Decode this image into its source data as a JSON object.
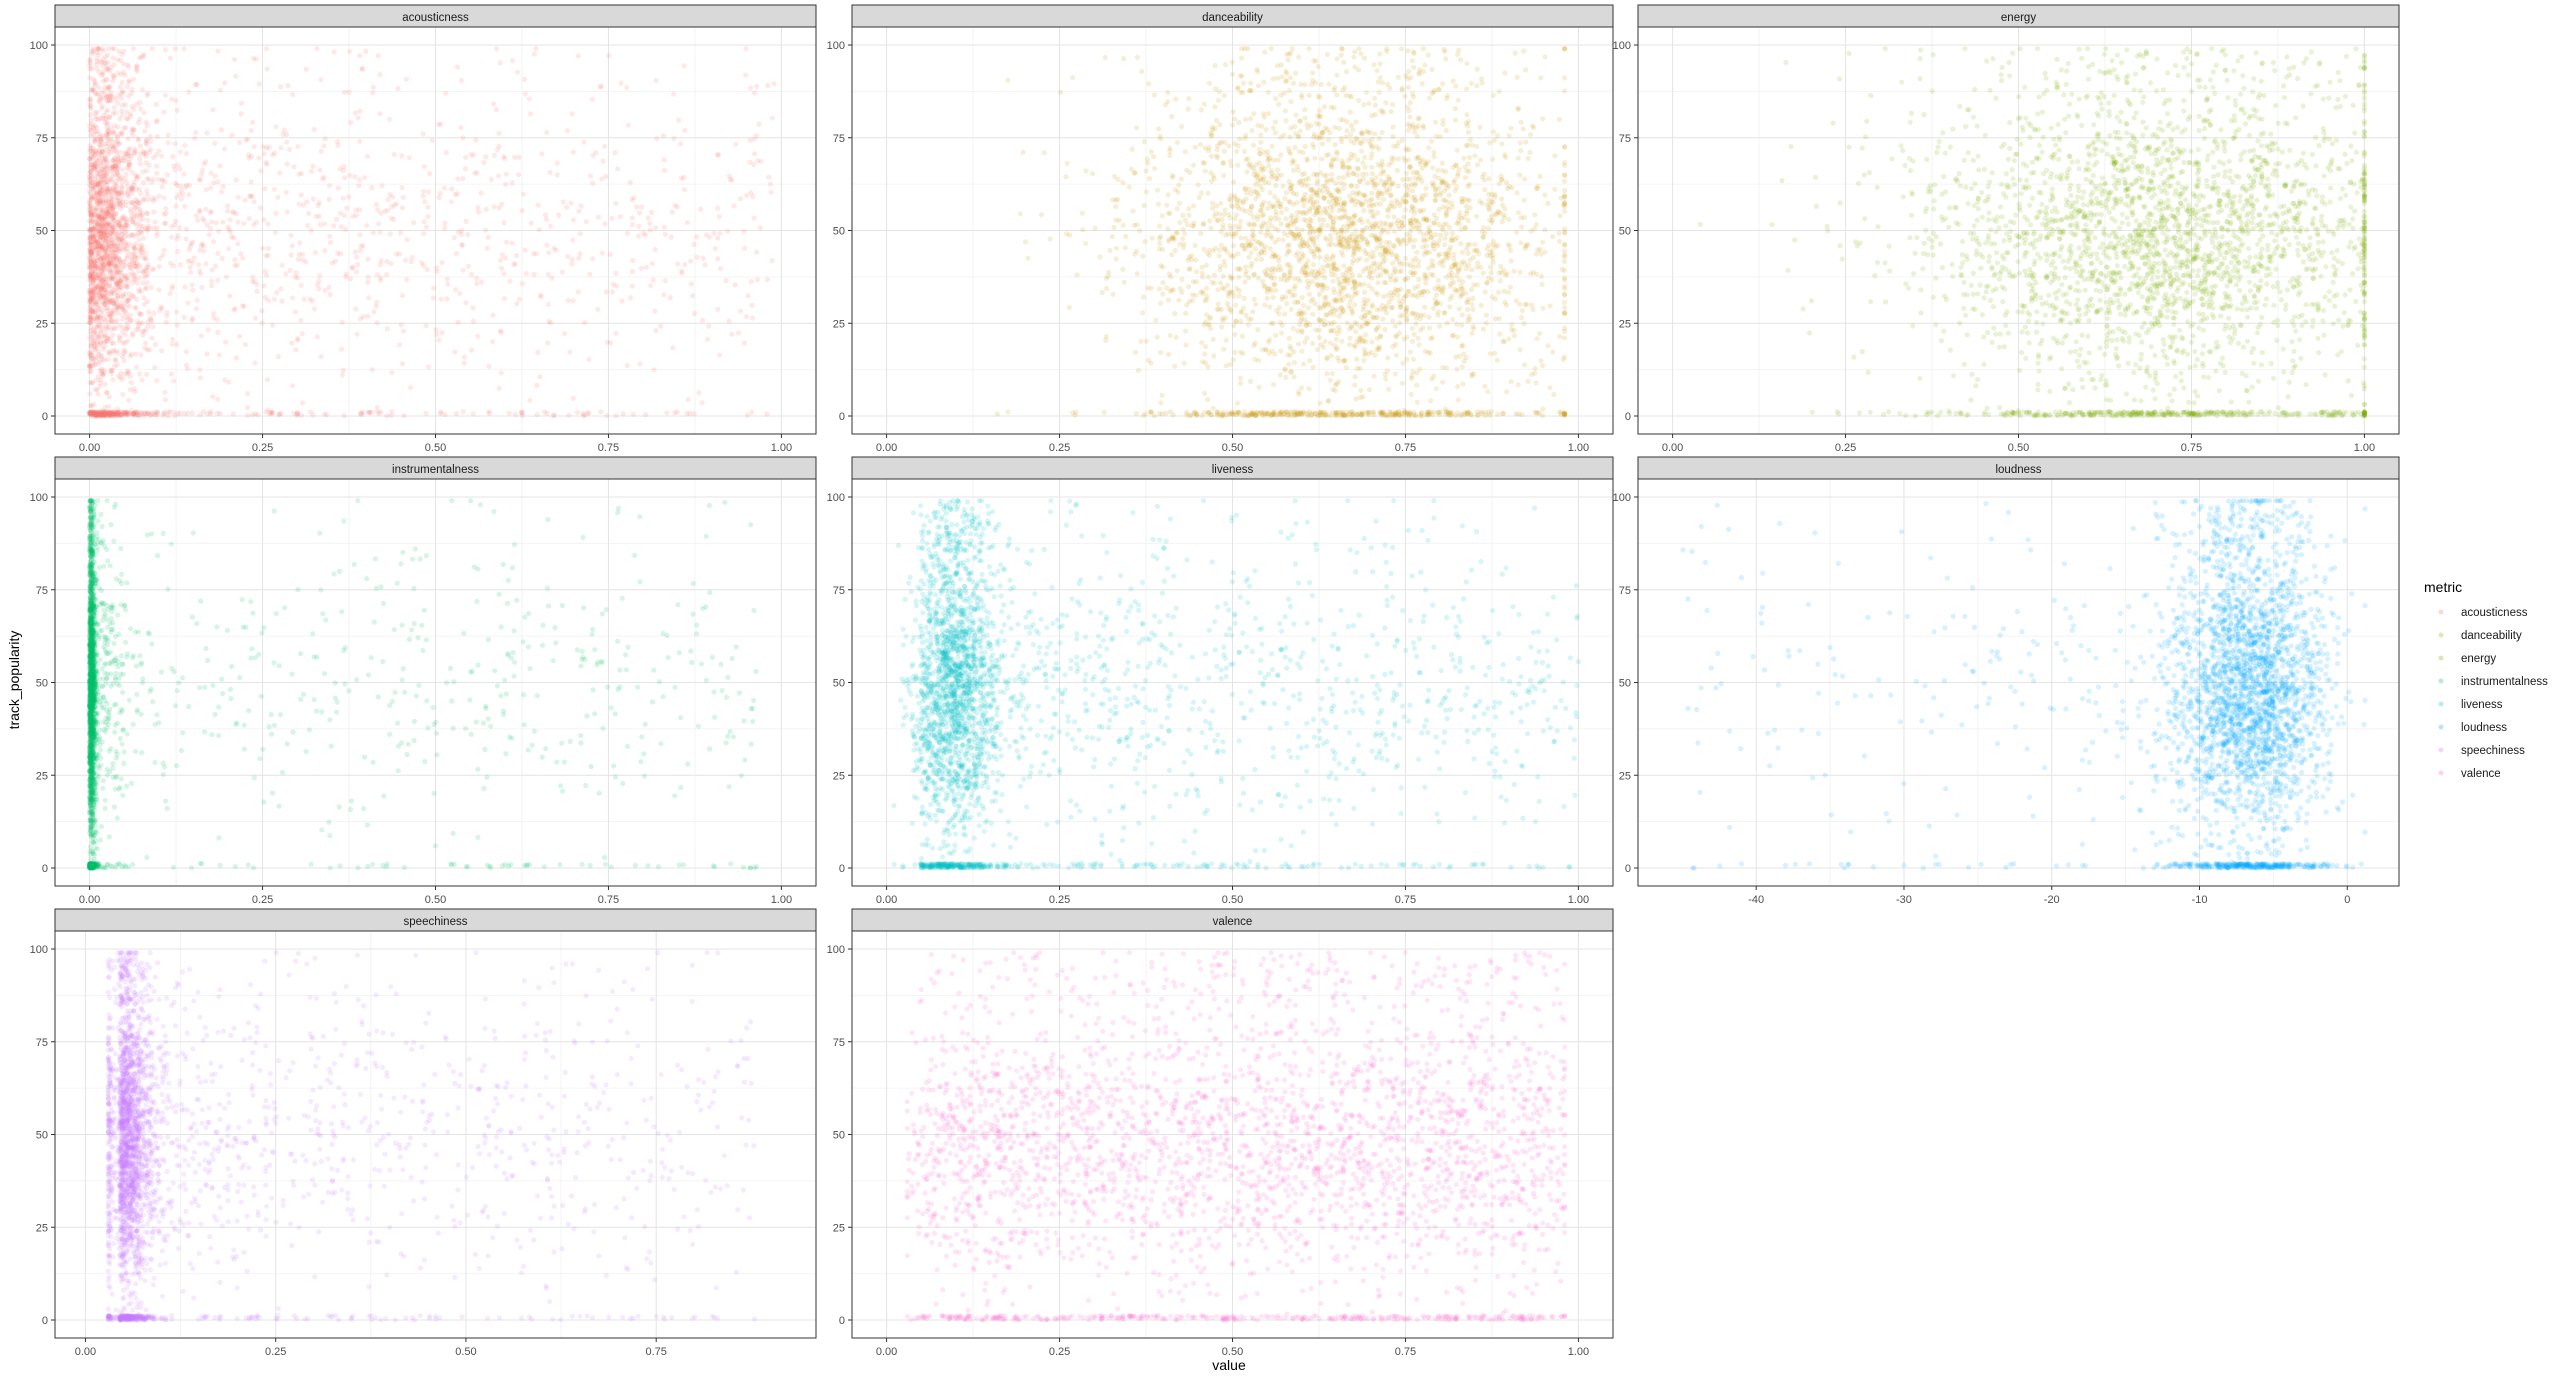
{
  "chart_data": {
    "type": "scatter",
    "layout": "facet_wrap",
    "facet_variable": "metric",
    "xlabel": "value",
    "ylabel": "track_popularity",
    "y_ticks": [
      0,
      25,
      50,
      75,
      100
    ],
    "ylim": [
      0,
      100
    ],
    "grid": true,
    "point_alpha": "low",
    "legend": {
      "title": "metric",
      "position": "right",
      "entries": [
        "acousticness",
        "danceability",
        "energy",
        "instrumentalness",
        "liveness",
        "loudness",
        "speechiness",
        "valence"
      ]
    },
    "panels": [
      {
        "metric": "acousticness",
        "color": "#F8766D",
        "x_ticks": [
          "0.00",
          "0.25",
          "0.50",
          "0.75",
          "1.00"
        ],
        "x_tick_values": [
          0,
          0.25,
          0.5,
          0.75,
          1.0
        ],
        "xlim": [
          -0.05,
          1.05
        ],
        "density_peak_x": 0.02,
        "range_x": [
          0.0,
          0.99
        ]
      },
      {
        "metric": "danceability",
        "color": "#CD9600",
        "x_ticks": [
          "0.00",
          "0.25",
          "0.50",
          "0.75",
          "1.00"
        ],
        "x_tick_values": [
          0,
          0.25,
          0.5,
          0.75,
          1.0
        ],
        "xlim": [
          -0.05,
          1.05
        ],
        "density_peak_x": 0.7,
        "range_x": [
          0.16,
          0.98
        ]
      },
      {
        "metric": "energy",
        "color": "#7CAE00",
        "x_ticks": [
          "0.00",
          "0.25",
          "0.50",
          "0.75",
          "1.00"
        ],
        "x_tick_values": [
          0,
          0.25,
          0.5,
          0.75,
          1.0
        ],
        "xlim": [
          -0.05,
          1.05
        ],
        "density_peak_x": 0.75,
        "range_x": [
          0.02,
          1.0
        ]
      },
      {
        "metric": "instrumentalness",
        "color": "#00BE67",
        "x_ticks": [
          "0.00",
          "0.25",
          "0.50",
          "0.75",
          "1.00"
        ],
        "x_tick_values": [
          0,
          0.25,
          0.5,
          0.75,
          1.0
        ],
        "xlim": [
          -0.05,
          1.05
        ],
        "density_peak_x": 0.0,
        "range_x": [
          0.0,
          0.98
        ]
      },
      {
        "metric": "liveness",
        "color": "#00BFC4",
        "x_ticks": [
          "0.00",
          "0.25",
          "0.50",
          "0.75",
          "1.00"
        ],
        "x_tick_values": [
          0,
          0.25,
          0.5,
          0.75,
          1.0
        ],
        "xlim": [
          -0.05,
          1.05
        ],
        "density_peak_x": 0.1,
        "range_x": [
          0.01,
          1.0
        ]
      },
      {
        "metric": "loudness",
        "color": "#00A9FF",
        "x_ticks": [
          "-40",
          "-30",
          "-20",
          "-10",
          "0"
        ],
        "x_tick_values": [
          -40,
          -30,
          -20,
          -10,
          0
        ],
        "xlim": [
          -48,
          3.5
        ],
        "density_peak_x": -6,
        "range_x": [
          -46,
          1.3
        ]
      },
      {
        "metric": "speechiness",
        "color": "#C77CFF",
        "x_ticks": [
          "0.00",
          "0.25",
          "0.50",
          "0.75"
        ],
        "x_tick_values": [
          0,
          0.25,
          0.5,
          0.75
        ],
        "xlim": [
          -0.04,
          0.96
        ],
        "density_peak_x": 0.04,
        "range_x": [
          0.02,
          0.92
        ]
      },
      {
        "metric": "valence",
        "color": "#FF61CC",
        "x_ticks": [
          "0.00",
          "0.25",
          "0.50",
          "0.75",
          "1.00"
        ],
        "x_tick_values": [
          0,
          0.25,
          0.5,
          0.75,
          1.0
        ],
        "xlim": [
          -0.05,
          1.05
        ],
        "density_peak_x": 0.5,
        "range_x": [
          0.03,
          0.99
        ]
      }
    ]
  }
}
